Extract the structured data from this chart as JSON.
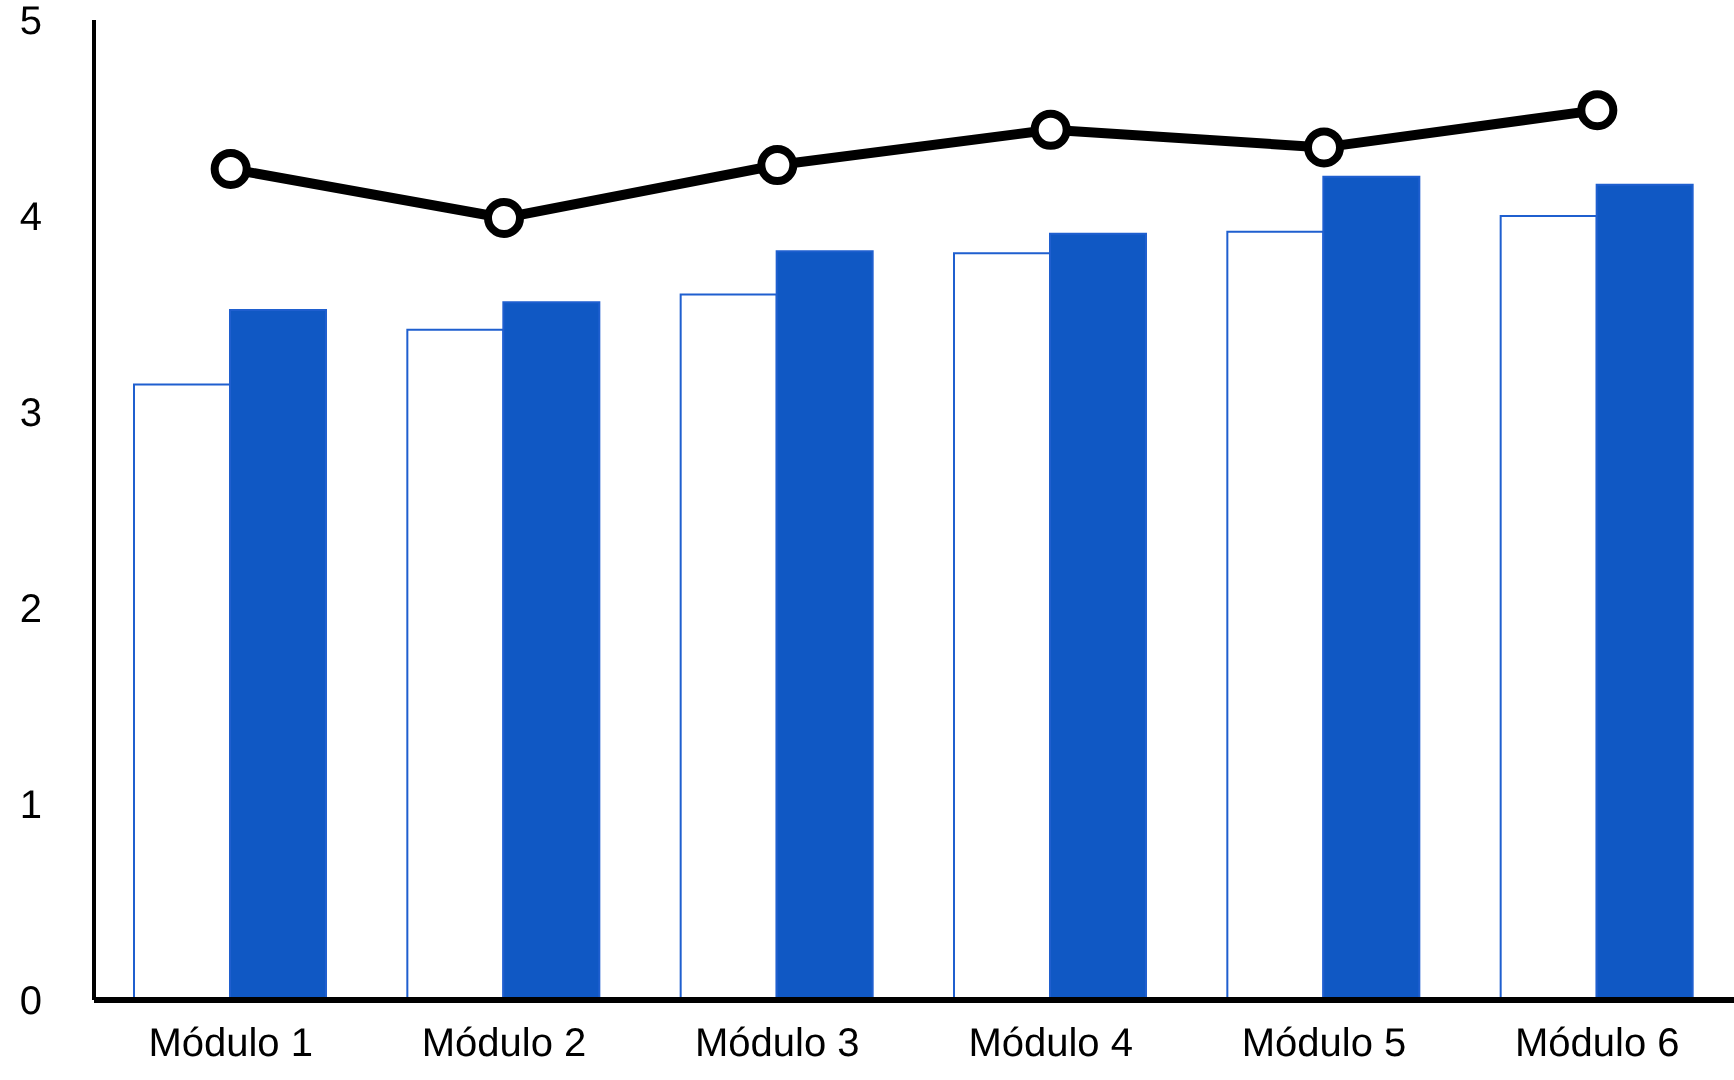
{
  "chart_data": {
    "type": "bar",
    "categories": [
      "Módulo 1",
      "Módulo 2",
      "Módulo 3",
      "Módulo 4",
      "Módulo 5",
      "Módulo 6"
    ],
    "series": [
      {
        "color": "#ffffff",
        "values": [
          3.14,
          3.42,
          3.6,
          3.81,
          3.92,
          4.0
        ]
      },
      {
        "color": "#1058c4",
        "values": [
          3.52,
          3.56,
          3.82,
          3.91,
          4.2,
          4.16
        ]
      },
      {
        "type": "line",
        "color": "#000000",
        "marker": "circle",
        "values": [
          4.24,
          3.99,
          4.26,
          4.44,
          4.35,
          4.54
        ]
      }
    ],
    "ylim": [
      0,
      5
    ],
    "yticks": [
      0,
      1,
      2,
      3,
      4,
      5
    ],
    "grid": false,
    "legend": false
  }
}
